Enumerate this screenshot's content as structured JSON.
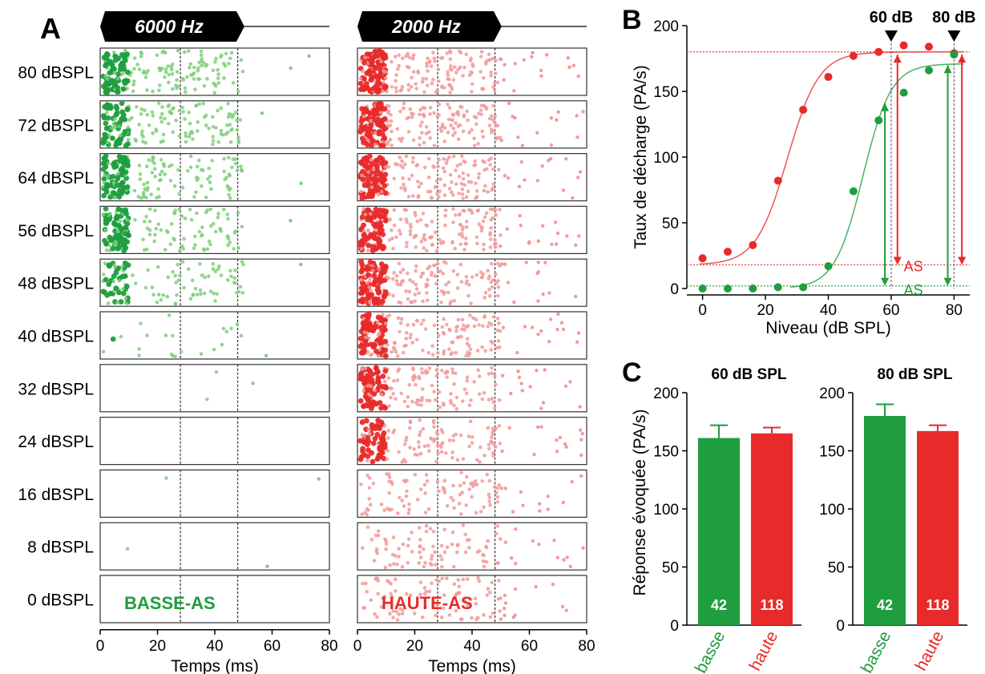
{
  "panel_labels": {
    "a": "A",
    "b": "B",
    "c": "C"
  },
  "colors": {
    "green": "#1e9e3e",
    "red": "#e82a2a",
    "green_light": "#7fcf7a",
    "red_light": "#f19a9a"
  },
  "raster": {
    "levels": [
      "80 dBSPL",
      "72 dBSPL",
      "64 dBSPL",
      "56 dBSPL",
      "48 dBSPL",
      "40 dBSPL",
      "32 dBSPL",
      "24 dBSPL",
      "16 dBSPL",
      "8 dBSPL",
      "0 dBSPL"
    ],
    "xticks": [
      "0",
      "20",
      "40",
      "60",
      "80"
    ],
    "xlabel": "Temps (ms)",
    "dashed_times_ms": [
      28,
      48
    ],
    "left": {
      "title": "6000 Hz",
      "label": "BASSE-AS",
      "density": [
        180,
        175,
        170,
        160,
        110,
        22,
        2,
        0,
        1,
        1,
        0
      ],
      "onset_dense": [
        1,
        1,
        1,
        1,
        0.7,
        0.3,
        0,
        0,
        0,
        0,
        0
      ],
      "noise": [
        2,
        1,
        1,
        1,
        1,
        1,
        1,
        0,
        1,
        1,
        0
      ]
    },
    "right": {
      "title": "2000 Hz",
      "label": "HAUTE-AS",
      "density": [
        230,
        225,
        220,
        215,
        210,
        200,
        180,
        150,
        90,
        85,
        90
      ],
      "onset_dense": [
        1,
        1,
        1,
        1,
        1,
        1,
        1,
        1,
        0,
        0,
        0
      ],
      "noise": [
        15,
        14,
        14,
        14,
        13,
        14,
        14,
        14,
        12,
        12,
        12
      ]
    }
  },
  "chart_data": [
    {
      "type": "scatter",
      "xlabel": "Niveau (dB SPL)",
      "ylabel": "Taux de décharge (PA/s)",
      "xlim": [
        -5,
        85
      ],
      "ylim": [
        0,
        200
      ],
      "xticks": [
        "0",
        "20",
        "40",
        "60",
        "80"
      ],
      "yticks": [
        "0",
        "50",
        "100",
        "150",
        "200"
      ],
      "annotations": {
        "arrow1": "60 dB",
        "arrow2": "80 dB",
        "sa_red": "AS",
        "sa_green": "AS"
      },
      "series": [
        {
          "color": "#e82a2a",
          "x": [
            0,
            8,
            16,
            24,
            32,
            40,
            48,
            56,
            64,
            72,
            80
          ],
          "y": [
            23,
            28,
            33,
            82,
            136,
            161,
            177,
            180,
            185,
            184,
            179
          ],
          "fit": {
            "base": 18,
            "top": 180,
            "x50": 27,
            "slope": 5
          },
          "spont": 18
        },
        {
          "color": "#1e9e3e",
          "x": [
            0,
            8,
            16,
            24,
            32,
            40,
            48,
            56,
            64,
            72,
            80
          ],
          "y": [
            0,
            0,
            0,
            1,
            1,
            17,
            74,
            128,
            149,
            166,
            178
          ],
          "fit": {
            "base": 0,
            "top": 171,
            "x50": 51,
            "slope": 4.5
          },
          "spont": 2
        }
      ]
    },
    {
      "type": "bar",
      "title": "60 dB SPL",
      "categories": [
        "basse",
        "haute"
      ],
      "values": [
        161,
        165
      ],
      "errors": [
        11,
        5
      ],
      "counts": [
        "42",
        "118"
      ],
      "ylabel": "Réponse évoquée (PA/s)",
      "ylim": [
        0,
        200
      ],
      "yticks": [
        "0",
        "50",
        "100",
        "150",
        "200"
      ]
    },
    {
      "type": "bar",
      "title": "80 dB SPL",
      "categories": [
        "basse",
        "haute"
      ],
      "values": [
        180,
        167
      ],
      "errors": [
        10,
        5
      ],
      "counts": [
        "42",
        "118"
      ],
      "ylim": [
        0,
        200
      ],
      "yticks": [
        "0",
        "50",
        "100",
        "150",
        "200"
      ]
    }
  ]
}
